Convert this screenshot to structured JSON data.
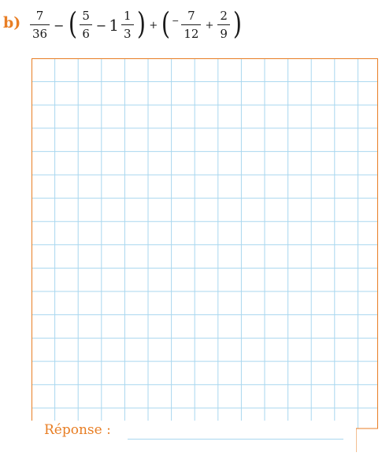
{
  "exercise": {
    "label": "b)",
    "expression": {
      "f1": {
        "num": "7",
        "den": "36"
      },
      "op1": "−",
      "paren_open": "(",
      "f2": {
        "num": "5",
        "den": "6"
      },
      "op2": "−",
      "whole": "1",
      "f3": {
        "num": "1",
        "den": "3"
      },
      "paren_close": ")",
      "op3": "+",
      "neg_sign": "−",
      "f4": {
        "num": "7",
        "den": "12"
      },
      "op4": "+",
      "f5": {
        "num": "2",
        "den": "9"
      }
    }
  },
  "answer": {
    "label": "Réponse :"
  },
  "colors": {
    "accent": "#e87e24",
    "grid": "#a9d7ef",
    "text": "#1a1a1a"
  }
}
